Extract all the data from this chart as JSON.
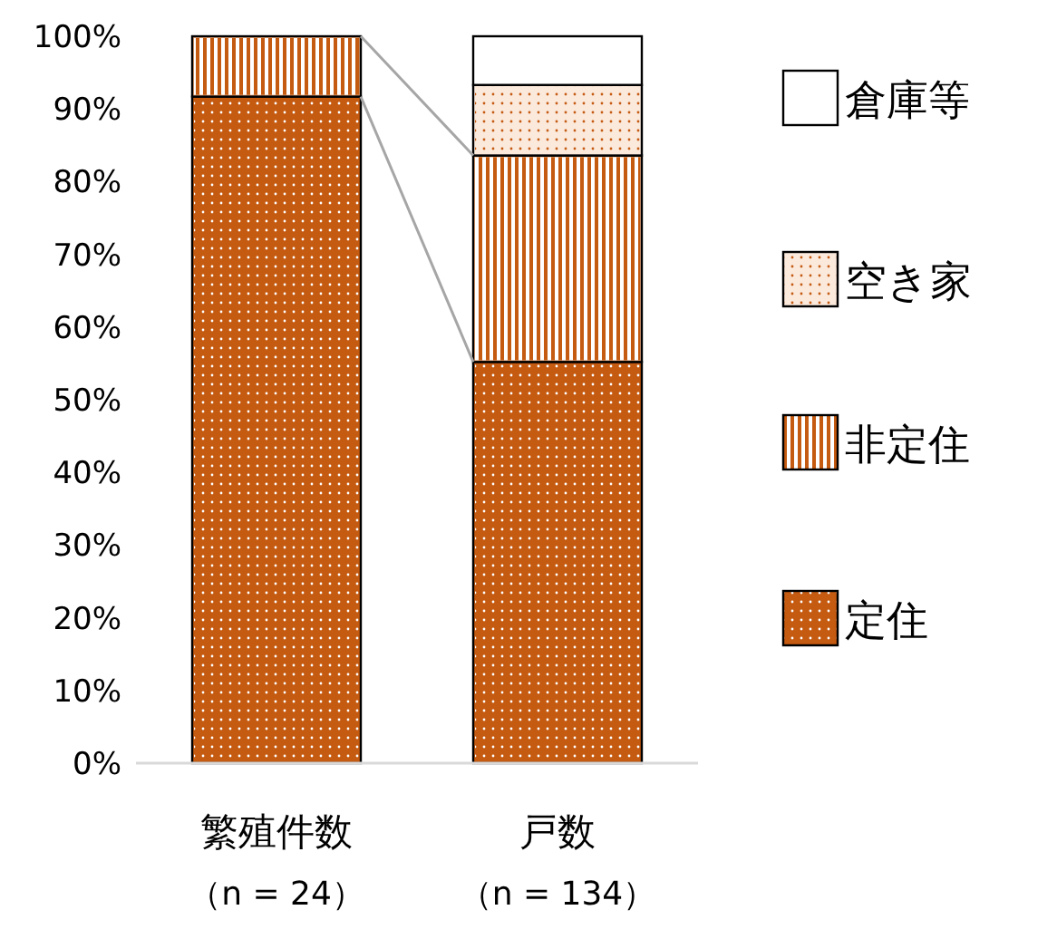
{
  "chart_data": {
    "type": "bar",
    "stacked": true,
    "categories": [
      "繁殖件数（n = 24）",
      "戸数（n = 134）"
    ],
    "series": [
      {
        "name": "定住",
        "color": "#c55a11",
        "values": [
          91.7,
          55.2
        ]
      },
      {
        "name": "非定住",
        "color": "#e9a679",
        "values": [
          8.3,
          28.4
        ]
      },
      {
        "name": "空き家",
        "color": "#fbe9dc",
        "values": [
          0,
          9.7
        ]
      },
      {
        "name": "倉庫等",
        "color": "#ffffff",
        "values": [
          0,
          6.7
        ]
      }
    ],
    "ylim": [
      0,
      100
    ],
    "yticks": [
      {
        "value": 0,
        "label": "0%"
      },
      {
        "value": 10,
        "label": "10%"
      },
      {
        "value": 20,
        "label": "20%"
      },
      {
        "value": 30,
        "label": "30%"
      },
      {
        "value": 40,
        "label": "40%"
      },
      {
        "value": 50,
        "label": "50%"
      },
      {
        "value": 60,
        "label": "60%"
      },
      {
        "value": 70,
        "label": "70%"
      },
      {
        "value": 80,
        "label": "80%"
      },
      {
        "value": 90,
        "label": "90%"
      },
      {
        "value": 100,
        "label": "100%"
      }
    ],
    "grid": false,
    "legend": "right"
  }
}
